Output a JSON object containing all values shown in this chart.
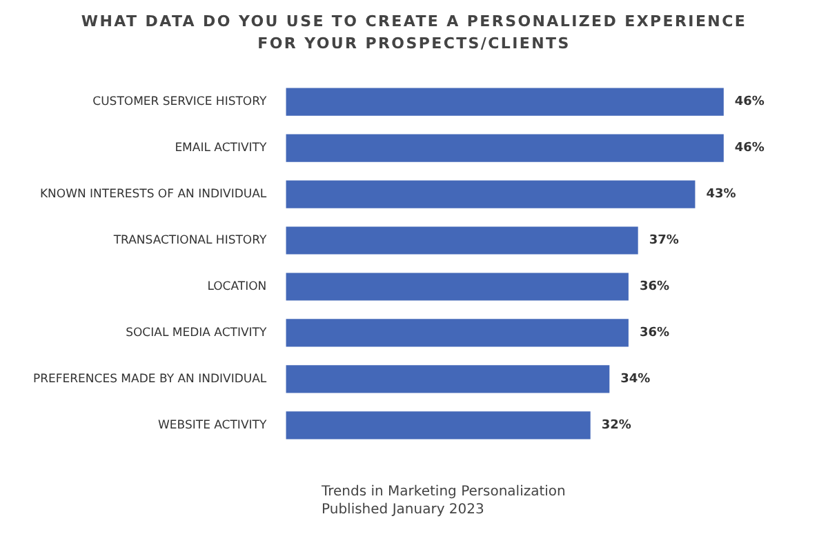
{
  "chart_data": {
    "type": "bar",
    "orientation": "horizontal",
    "title": "WHAT DATA DO YOU USE TO CREATE A PERSONALIZED EXPERIENCE FOR YOUR PROSPECTS/CLIENTS",
    "categories": [
      "CUSTOMER SERVICE HISTORY",
      "EMAIL ACTIVITY",
      "KNOWN INTERESTS OF AN INDIVIDUAL",
      "TRANSACTIONAL HISTORY",
      "LOCATION",
      "SOCIAL MEDIA ACTIVITY",
      "PREFERENCES MADE BY AN INDIVIDUAL",
      "WEBSITE ACTIVITY"
    ],
    "values": [
      46,
      46,
      43,
      37,
      36,
      36,
      34,
      32
    ],
    "value_labels": [
      "46%",
      "46%",
      "43%",
      "37%",
      "36%",
      "36%",
      "34%",
      "32%"
    ],
    "color": "#4468b8",
    "annotations": [
      "Trends in Marketing Personalization",
      "Published January 2023"
    ]
  }
}
